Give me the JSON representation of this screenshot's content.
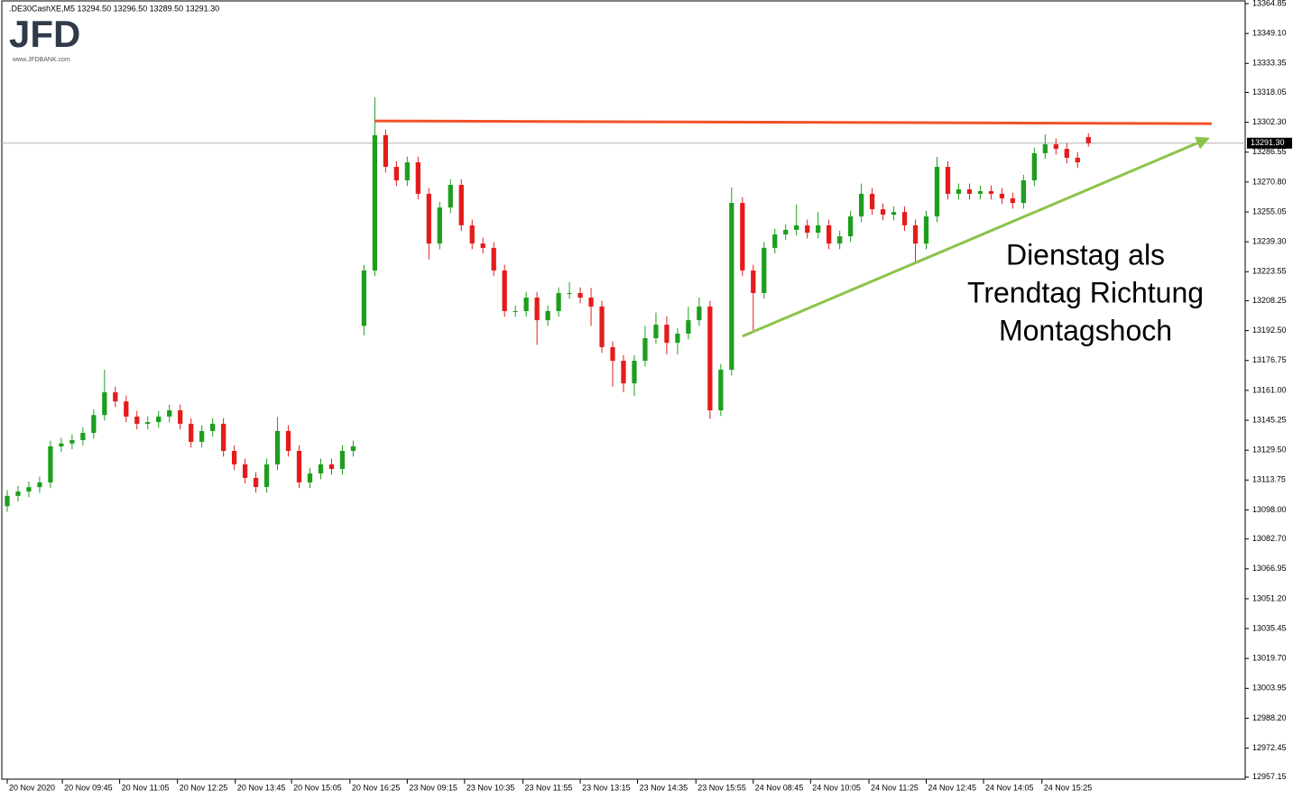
{
  "chart_data": {
    "type": "candlestick",
    "header_text": ".DE30CashXE,M5  13294.50 13296.50 13289.50 13291.30",
    "logo": "JFD",
    "logo_url": "www.JFDBANK.com",
    "up_color": "#1e9e1e",
    "down_color": "#e51b1b",
    "open": [
      13100.0,
      13105.4,
      13107.7,
      13110.0,
      13112.5,
      13131.5,
      13133.0,
      13134.8,
      13138.6,
      13148.0,
      13160.0,
      13155.2,
      13147.2,
      13143.4,
      13144.3,
      13147.2,
      13150.5,
      13143.4,
      13133.9,
      13139.6,
      13143.4,
      13129.1,
      13122.0,
      13114.9,
      13110.1,
      13122.0,
      13139.6,
      13129.1,
      13112.5,
      13117.2,
      13122.0,
      13119.6,
      13129.1,
      13195.0,
      13224.2,
      13295.5,
      13278.8,
      13271.7,
      13281.2,
      13264.6,
      13238.4,
      13257.4,
      13269.3,
      13248.0,
      13238.4,
      13236.1,
      13224.2,
      13202.8,
      13202.8,
      13209.9,
      13198.0,
      13202.8,
      13212.3,
      13212.3,
      13209.9,
      13205.2,
      13183.8,
      13176.6,
      13164.7,
      13176.6,
      13188.5,
      13195.6,
      13186.1,
      13190.9,
      13198.0,
      13205.2,
      13150.5,
      13171.9,
      13259.8,
      13224.2,
      13212.3,
      13236.1,
      13243.2,
      13245.6,
      13248.0,
      13244.1,
      13248.0,
      13238.4,
      13242.2,
      13252.7,
      13264.6,
      13256.5,
      13253.6,
      13255.0,
      13248.0,
      13238.4,
      13252.7,
      13278.8,
      13264.6,
      13267.0,
      13264.6,
      13266.0,
      13264.6,
      13262.2,
      13259.8,
      13271.7,
      13286.0,
      13290.7,
      13288.3,
      13283.6,
      13294.5
    ],
    "high": [
      13108.4,
      13110.7,
      13113.0,
      13115.5,
      13134.5,
      13136.0,
      13137.8,
      13141.6,
      13151.0,
      13171.9,
      13163.0,
      13158.2,
      13150.2,
      13147.3,
      13150.2,
      13153.5,
      13153.5,
      13146.4,
      13142.6,
      13146.4,
      13146.4,
      13132.1,
      13125.0,
      13117.9,
      13125.0,
      13147.0,
      13142.6,
      13132.1,
      13120.2,
      13125.0,
      13125.0,
      13132.1,
      13134.5,
      13227.2,
      13315.4,
      13298.5,
      13281.8,
      13284.2,
      13284.2,
      13267.6,
      13260.4,
      13272.3,
      13272.3,
      13251.0,
      13241.4,
      13239.1,
      13227.2,
      13205.8,
      13212.9,
      13212.9,
      13205.8,
      13215.3,
      13218.0,
      13215.3,
      13215.0,
      13208.2,
      13186.8,
      13179.6,
      13179.6,
      13195.0,
      13202.0,
      13200.0,
      13193.9,
      13205.0,
      13210.0,
      13208.2,
      13174.9,
      13268.0,
      13262.8,
      13227.2,
      13239.1,
      13246.2,
      13248.6,
      13259.0,
      13251.0,
      13255.0,
      13251.0,
      13245.2,
      13255.7,
      13270.0,
      13267.6,
      13259.5,
      13258.0,
      13258.0,
      13251.0,
      13255.7,
      13284.0,
      13281.8,
      13270.0,
      13270.0,
      13269.0,
      13269.0,
      13267.6,
      13265.2,
      13274.7,
      13289.0,
      13296.0,
      13293.7,
      13291.3,
      13286.6,
      13296.5
    ],
    "low": [
      13097.0,
      13102.4,
      13104.7,
      13107.0,
      13109.5,
      13128.5,
      13130.0,
      13131.8,
      13135.6,
      13145.0,
      13152.2,
      13144.2,
      13140.4,
      13140.4,
      13141.3,
      13144.2,
      13140.4,
      13130.9,
      13130.9,
      13136.6,
      13126.1,
      13119.0,
      13111.9,
      13107.1,
      13107.1,
      13119.0,
      13126.1,
      13109.5,
      13109.5,
      13114.2,
      13116.6,
      13116.6,
      13126.1,
      13190.0,
      13221.2,
      13275.8,
      13268.7,
      13268.7,
      13261.6,
      13230.0,
      13235.4,
      13254.4,
      13245.0,
      13235.4,
      13233.1,
      13221.2,
      13199.8,
      13199.8,
      13199.8,
      13185.0,
      13195.0,
      13199.8,
      13209.3,
      13206.9,
      13195.0,
      13180.8,
      13163.0,
      13160.0,
      13158.0,
      13173.6,
      13185.5,
      13180.0,
      13180.0,
      13187.9,
      13195.0,
      13146.0,
      13147.5,
      13168.9,
      13221.2,
      13192.0,
      13209.3,
      13233.1,
      13240.2,
      13242.6,
      13241.1,
      13241.1,
      13235.4,
      13235.4,
      13239.2,
      13249.7,
      13253.5,
      13250.6,
      13250.6,
      13245.0,
      13228.0,
      13235.4,
      13249.7,
      13261.6,
      13261.6,
      13261.6,
      13261.6,
      13261.6,
      13259.2,
      13256.8,
      13256.8,
      13268.7,
      13283.0,
      13285.3,
      13280.6,
      13278.2,
      13289.5
    ],
    "close": [
      13105.4,
      13107.7,
      13110.0,
      13112.5,
      13131.5,
      13133.0,
      13134.8,
      13138.6,
      13148.0,
      13160.0,
      13155.2,
      13147.2,
      13143.4,
      13144.3,
      13147.2,
      13150.5,
      13143.4,
      13133.9,
      13139.6,
      13143.4,
      13129.1,
      13122.0,
      13114.9,
      13110.1,
      13122.0,
      13139.6,
      13129.1,
      13112.5,
      13117.2,
      13122.0,
      13119.6,
      13129.1,
      13131.5,
      13224.2,
      13295.5,
      13278.8,
      13271.7,
      13281.2,
      13264.6,
      13238.4,
      13257.4,
      13269.3,
      13248.0,
      13238.4,
      13236.1,
      13224.2,
      13202.8,
      13202.8,
      13209.9,
      13198.0,
      13202.8,
      13212.3,
      13212.3,
      13209.9,
      13205.2,
      13183.8,
      13176.6,
      13164.7,
      13176.6,
      13188.5,
      13195.6,
      13186.1,
      13190.9,
      13198.0,
      13205.2,
      13150.5,
      13171.9,
      13259.8,
      13224.2,
      13212.3,
      13236.1,
      13243.2,
      13245.6,
      13248.0,
      13244.1,
      13248.0,
      13238.4,
      13242.2,
      13252.7,
      13264.6,
      13256.5,
      13253.6,
      13255.0,
      13248.0,
      13238.4,
      13252.7,
      13278.8,
      13264.6,
      13267.0,
      13264.6,
      13266.0,
      13264.6,
      13262.2,
      13259.8,
      13271.7,
      13286.0,
      13290.7,
      13288.3,
      13283.6,
      13281.2,
      13291.3
    ],
    "xlim": [
      -0.5,
      114.5
    ],
    "xticks": [
      {
        "value": 0,
        "label": "20 Nov 2020"
      },
      {
        "value": 5.1,
        "label": "20 Nov 09:45"
      },
      {
        "value": 10.4,
        "label": "20 Nov 11:05"
      },
      {
        "value": 15.75,
        "label": "20 Nov 12:25"
      },
      {
        "value": 21.1,
        "label": "20 Nov 13:45"
      },
      {
        "value": 26.3,
        "label": "20 Nov 15:05"
      },
      {
        "value": 31.7,
        "label": "20 Nov 16:25"
      },
      {
        "value": 37,
        "label": "23 Nov 09:15"
      },
      {
        "value": 42.3,
        "label": "23 Nov 10:35"
      },
      {
        "value": 47.7,
        "label": "23 Nov 11:55"
      },
      {
        "value": 53,
        "label": "23 Nov 13:15"
      },
      {
        "value": 58.3,
        "label": "23 Nov 14:35"
      },
      {
        "value": 63.7,
        "label": "23 Nov 15:55"
      },
      {
        "value": 69,
        "label": "24 Nov 08:45"
      },
      {
        "value": 74.3,
        "label": "24 Nov 10:05"
      },
      {
        "value": 79.7,
        "label": "24 Nov 11:25"
      },
      {
        "value": 85,
        "label": "24 Nov 12:45"
      },
      {
        "value": 90.3,
        "label": "24 Nov 14:05"
      },
      {
        "value": 95.7,
        "label": "24 Nov 15:25"
      }
    ],
    "ylim": [
      12956.1,
      13366.75
    ],
    "yticks": [
      13364.85,
      {
        "value": 13349.1,
        "label": "13349.10"
      },
      13333.35,
      13318.05,
      {
        "value": 13302.3,
        "label": "13302.30"
      },
      13286.55,
      {
        "value": 13270.8,
        "label": "13270.80"
      },
      13255.05,
      {
        "value": 13239.3,
        "label": "13239.30"
      },
      13223.55,
      13208.25,
      {
        "value": 13192.5,
        "label": "13192.50"
      },
      13176.75,
      {
        "value": 13161,
        "label": "13161.00"
      },
      13145.25,
      {
        "value": 13129.5,
        "label": "13129.50"
      },
      13113.75,
      {
        "value": 13098,
        "label": "13098.00"
      },
      {
        "value": 13082.7,
        "label": "13082.70"
      },
      13066.95,
      {
        "value": 13051.2,
        "label": "13051.20"
      },
      13035.45,
      {
        "value": 13019.7,
        "label": "13019.70"
      },
      13003.95,
      {
        "value": 12988.2,
        "label": "12988.20"
      },
      12972.45,
      12957.15
    ],
    "last_price": {
      "value": 13291.3,
      "label": "13291.30"
    },
    "resistance_line": {
      "x": [
        34,
        111.4
      ],
      "y": [
        13303.0,
        13301.6
      ],
      "color": "#f0522a"
    },
    "trend_arrow": {
      "x": [
        68,
        111
      ],
      "y": [
        13189.5,
        13293.6
      ],
      "color": "#8bc34a"
    },
    "annotation": [
      "Dienstag als",
      "Trendtag Richtung",
      "Montagshoch"
    ]
  }
}
